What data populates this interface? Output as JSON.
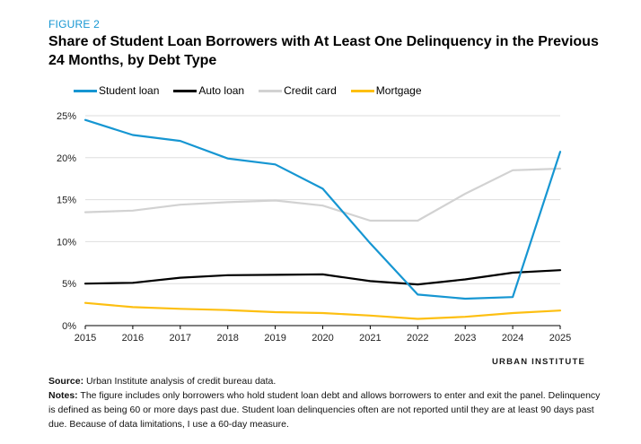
{
  "figure_label": "FIGURE 2",
  "title": "Share of Student Loan Borrowers with At Least One Delinquency in the Previous 24 Months, by Debt Type",
  "brand": "URBAN INSTITUTE",
  "source_label": "Source:",
  "source_text": " Urban Institute analysis of credit bureau data.",
  "notes_label": "Notes:",
  "notes_text": " The figure includes only borrowers who hold student loan debt and allows borrowers to enter and exit the panel. Delinquency is defined as being 60 or more days past due. Student loan delinquencies often are not reported until they are at least 90 days past due. Because of data limitations, I use a 60-day measure.",
  "colors": {
    "student_loan": "#1696d2",
    "auto_loan": "#000000",
    "credit_card": "#d2d2d2",
    "mortgage": "#fdbf11"
  },
  "chart_data": {
    "type": "line",
    "title": "Share of Student Loan Borrowers with At Least One Delinquency in the Previous 24 Months, by Debt Type",
    "x": [
      2015,
      2016,
      2017,
      2018,
      2019,
      2020,
      2021,
      2022,
      2023,
      2024,
      2025
    ],
    "x_tick_labels": [
      "2015",
      "2016",
      "2017",
      "2018",
      "2019",
      "2020",
      "2021",
      "2022",
      "2023",
      "2024",
      "2025"
    ],
    "y_tick_values": [
      0,
      5,
      10,
      15,
      20,
      25
    ],
    "y_tick_labels": [
      "0%",
      "5%",
      "10%",
      "15%",
      "20%",
      "25%"
    ],
    "ylim": [
      0,
      25
    ],
    "xlabel": "",
    "ylabel": "",
    "grid": true,
    "legend_position": "top-left",
    "series": [
      {
        "key": "student_loan",
        "name": "Student loan",
        "values": [
          24.5,
          22.7,
          22.0,
          19.9,
          19.2,
          16.3,
          9.8,
          3.7,
          3.2,
          3.4,
          20.7
        ]
      },
      {
        "key": "auto_loan",
        "name": "Auto loan",
        "values": [
          5.0,
          5.1,
          5.7,
          6.0,
          6.05,
          6.1,
          5.3,
          4.9,
          5.5,
          6.3,
          6.6
        ]
      },
      {
        "key": "credit_card",
        "name": "Credit card",
        "values": [
          13.5,
          13.7,
          14.4,
          14.7,
          14.9,
          14.3,
          12.5,
          12.5,
          15.7,
          18.5,
          18.7
        ]
      },
      {
        "key": "mortgage",
        "name": "Mortgage",
        "values": [
          2.7,
          2.2,
          2.0,
          1.85,
          1.6,
          1.5,
          1.2,
          0.8,
          1.05,
          1.5,
          1.8
        ]
      }
    ]
  }
}
